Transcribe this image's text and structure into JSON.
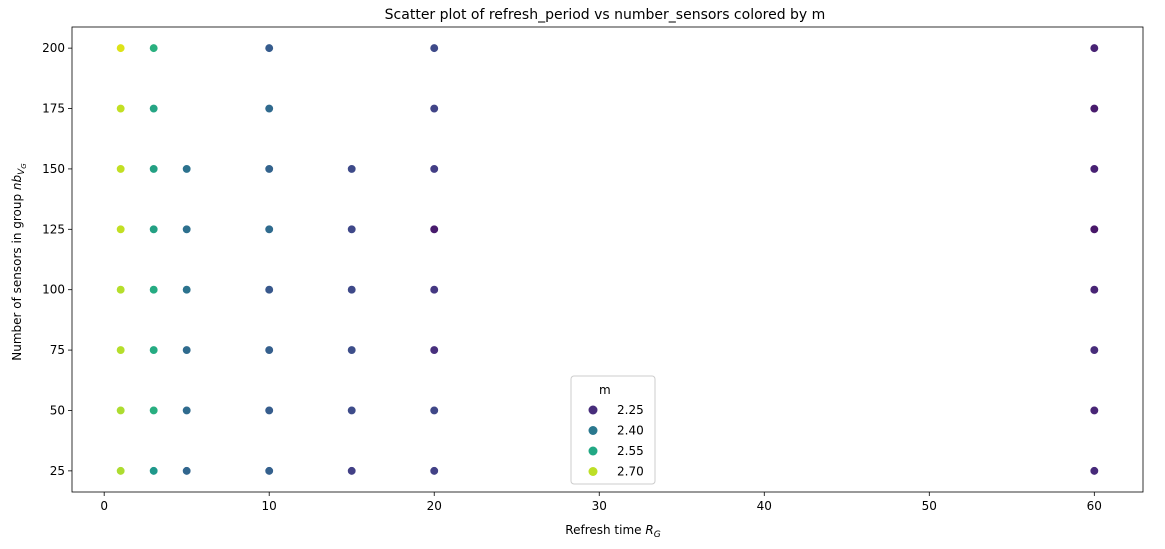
{
  "chart_data": {
    "type": "scatter",
    "title": "Scatter plot of refresh_period vs number_sensors colored by m",
    "xlabel_main": "Refresh time ",
    "xlabel_symbol": "R",
    "xlabel_sub": "G",
    "ylabel_main": "Number of sensors in group ",
    "ylabel_symbol": "nb",
    "ylabel_sub": "V",
    "ylabel_subsub": "G",
    "xlim": [
      -1.95,
      62.95
    ],
    "ylim": [
      16.25,
      208.75
    ],
    "xticks": [
      0,
      10,
      20,
      30,
      40,
      50,
      60
    ],
    "yticks": [
      25,
      50,
      75,
      100,
      125,
      150,
      175,
      200
    ],
    "grid": false,
    "legend": {
      "title": "m",
      "placement": "bottom-center",
      "entries": [
        {
          "label": "2.25",
          "color": "#472d7b"
        },
        {
          "label": "2.40",
          "color": "#2a788e"
        },
        {
          "label": "2.55",
          "color": "#22a884"
        },
        {
          "label": "2.70",
          "color": "#bddf26"
        }
      ]
    },
    "points": [
      {
        "x": 1,
        "y": 200,
        "color": "#dde318"
      },
      {
        "x": 1,
        "y": 175,
        "color": "#c2df23"
      },
      {
        "x": 1,
        "y": 150,
        "color": "#c2df23"
      },
      {
        "x": 1,
        "y": 125,
        "color": "#c2df23"
      },
      {
        "x": 1,
        "y": 100,
        "color": "#b5de2b"
      },
      {
        "x": 1,
        "y": 75,
        "color": "#b5de2b"
      },
      {
        "x": 1,
        "y": 50,
        "color": "#addc30"
      },
      {
        "x": 1,
        "y": 25,
        "color": "#addc30"
      },
      {
        "x": 3,
        "y": 200,
        "color": "#2ab07f"
      },
      {
        "x": 3,
        "y": 175,
        "color": "#25a584"
      },
      {
        "x": 3,
        "y": 150,
        "color": "#23a083"
      },
      {
        "x": 3,
        "y": 125,
        "color": "#23a083"
      },
      {
        "x": 3,
        "y": 100,
        "color": "#25ab82"
      },
      {
        "x": 3,
        "y": 75,
        "color": "#25ab82"
      },
      {
        "x": 3,
        "y": 50,
        "color": "#28ae80"
      },
      {
        "x": 3,
        "y": 25,
        "color": "#1f988b"
      },
      {
        "x": 5,
        "y": 150,
        "color": "#2c728e"
      },
      {
        "x": 5,
        "y": 125,
        "color": "#2d708e"
      },
      {
        "x": 5,
        "y": 100,
        "color": "#2c738e"
      },
      {
        "x": 5,
        "y": 75,
        "color": "#2f6b8e"
      },
      {
        "x": 5,
        "y": 50,
        "color": "#2f6b8e"
      },
      {
        "x": 5,
        "y": 25,
        "color": "#31668e"
      },
      {
        "x": 10,
        "y": 200,
        "color": "#365c8d"
      },
      {
        "x": 10,
        "y": 175,
        "color": "#306a8e"
      },
      {
        "x": 10,
        "y": 150,
        "color": "#33638d"
      },
      {
        "x": 10,
        "y": 125,
        "color": "#2f6b8e"
      },
      {
        "x": 10,
        "y": 100,
        "color": "#38588c"
      },
      {
        "x": 10,
        "y": 75,
        "color": "#355f8d"
      },
      {
        "x": 10,
        "y": 50,
        "color": "#365d8d"
      },
      {
        "x": 10,
        "y": 25,
        "color": "#34608d"
      },
      {
        "x": 15,
        "y": 150,
        "color": "#3e4a89"
      },
      {
        "x": 15,
        "y": 125,
        "color": "#3f4889"
      },
      {
        "x": 15,
        "y": 100,
        "color": "#3e4989"
      },
      {
        "x": 15,
        "y": 75,
        "color": "#3d4e8a"
      },
      {
        "x": 15,
        "y": 50,
        "color": "#3e4c8a"
      },
      {
        "x": 15,
        "y": 25,
        "color": "#424086"
      },
      {
        "x": 20,
        "y": 200,
        "color": "#3e4a89"
      },
      {
        "x": 20,
        "y": 175,
        "color": "#414487"
      },
      {
        "x": 20,
        "y": 150,
        "color": "#433e85"
      },
      {
        "x": 20,
        "y": 125,
        "color": "#481b6d"
      },
      {
        "x": 20,
        "y": 100,
        "color": "#453882"
      },
      {
        "x": 20,
        "y": 75,
        "color": "#472f7d"
      },
      {
        "x": 20,
        "y": 50,
        "color": "#3f4788"
      },
      {
        "x": 20,
        "y": 25,
        "color": "#424186"
      },
      {
        "x": 60,
        "y": 200,
        "color": "#482374"
      },
      {
        "x": 60,
        "y": 175,
        "color": "#481b6d"
      },
      {
        "x": 60,
        "y": 150,
        "color": "#482173"
      },
      {
        "x": 60,
        "y": 125,
        "color": "#481769"
      },
      {
        "x": 60,
        "y": 100,
        "color": "#482475"
      },
      {
        "x": 60,
        "y": 75,
        "color": "#472c7a"
      },
      {
        "x": 60,
        "y": 50,
        "color": "#482576"
      },
      {
        "x": 60,
        "y": 25,
        "color": "#472a7a"
      }
    ]
  }
}
